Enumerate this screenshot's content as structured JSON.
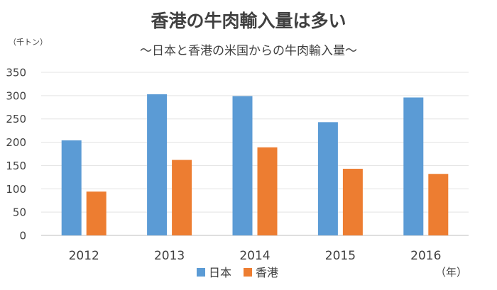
{
  "chart_data": {
    "type": "bar",
    "title": "香港の牛肉輸入量は多い",
    "subtitle": "～日本と香港の米国からの牛肉輸入量～",
    "ylabel": "（千トン）",
    "xlabel": "（年）",
    "categories": [
      "2012",
      "2013",
      "2014",
      "2015",
      "2016"
    ],
    "ylim": [
      0,
      350
    ],
    "yticks": [
      0,
      50,
      100,
      150,
      200,
      250,
      300,
      350
    ],
    "grid": true,
    "legend_position": "bottom",
    "series": [
      {
        "name": "日本",
        "color": "#5B9BD5",
        "values": [
          204,
          303,
          299,
          243,
          296
        ]
      },
      {
        "name": "香港",
        "color": "#ED7D31",
        "values": [
          94,
          162,
          189,
          143,
          132
        ]
      }
    ]
  }
}
